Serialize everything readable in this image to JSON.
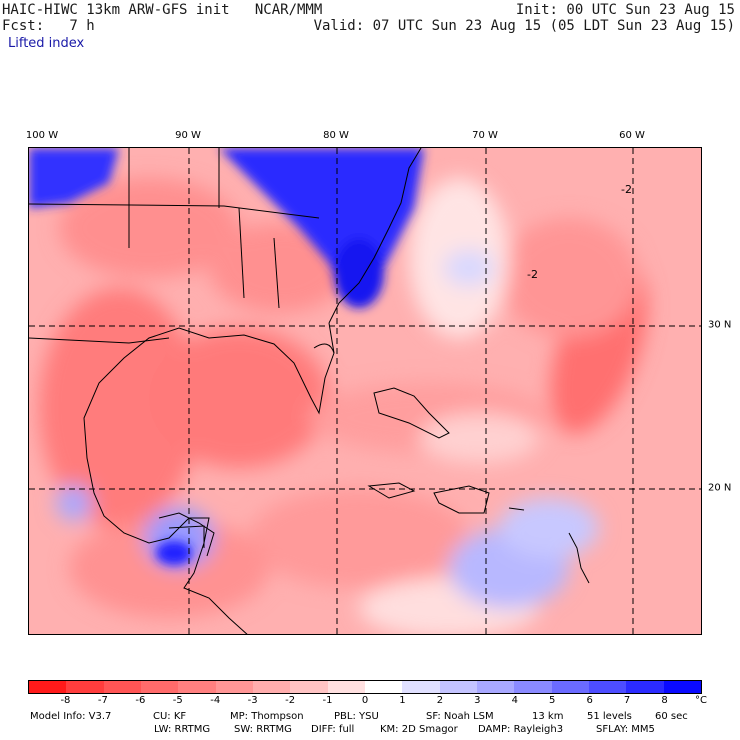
{
  "header": {
    "line1_left": "HAIC-HIWC 13km ARW-GFS init   NCAR/MMM",
    "line1_right": "Init: 00 UTC Sun 23 Aug 15",
    "line2_left": "Fcst:   7 h",
    "line2_right": "Valid: 07 UTC Sun 23 Aug 15 (05 LDT Sun 23 Aug 15)",
    "field": "Lifted index"
  },
  "map": {
    "lon_labels": [
      "100 W",
      "90 W",
      "80 W",
      "70 W",
      "60 W"
    ],
    "lat_labels": [
      "30 N",
      "20 N"
    ],
    "contour_labels": [
      "-2",
      "-2"
    ]
  },
  "colorbar": {
    "levels": [
      "-8",
      "-7",
      "-6",
      "-5",
      "-4",
      "-3",
      "-2",
      "-1",
      "0",
      "1",
      "2",
      "3",
      "4",
      "5",
      "6",
      "7",
      "8"
    ],
    "unit": "°C",
    "colors": [
      "#ff1a1a",
      "#ff3d3d",
      "#ff5555",
      "#ff6b6b",
      "#ff8080",
      "#ff9696",
      "#ffadad",
      "#ffc4c4",
      "#ffe0e0",
      "#ffffff",
      "#e0e0ff",
      "#c4c4ff",
      "#a8a8ff",
      "#8a8aff",
      "#6b6bff",
      "#4d4dff",
      "#2b2bff",
      "#0a0aff"
    ]
  },
  "footer": {
    "line1": [
      "Model Info: V3.7",
      "CU: KF",
      "MP: Thompson",
      "PBL: YSU",
      "SF: Noah LSM",
      "13 km",
      "51 levels",
      "60 sec"
    ],
    "line2": [
      "LW: RRTMG",
      "SW: RRTMG",
      "DIFF: full",
      "KM: 2D Smagor",
      "DAMP: Rayleigh3",
      "SFLAY: MM5"
    ]
  }
}
